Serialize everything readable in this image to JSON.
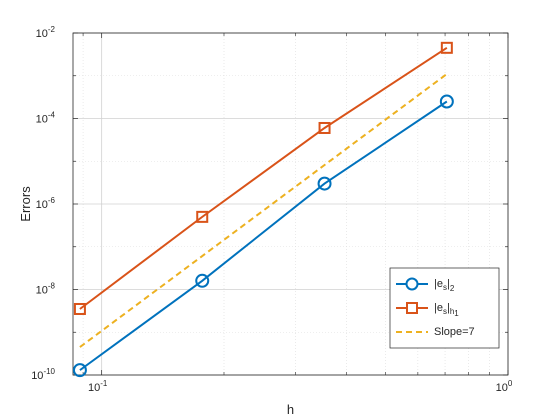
{
  "chart_data": {
    "type": "line",
    "xscale": "log",
    "yscale": "log",
    "xlim": [
      0.085,
      1.0
    ],
    "ylim": [
      1e-10,
      0.01
    ],
    "xlabel": "h",
    "ylabel": "Errors",
    "grid": true,
    "minor_grid": true,
    "legend_position": "bottom-right",
    "x_ticks": [
      {
        "value": 0.1,
        "base": "10",
        "exp": "-1"
      },
      {
        "value": 1.0,
        "base": "10",
        "exp": "0"
      }
    ],
    "y_ticks": [
      {
        "value": 1e-10,
        "base": "10",
        "exp": "-10"
      },
      {
        "value": 1e-08,
        "base": "10",
        "exp": "-8"
      },
      {
        "value": 1e-06,
        "base": "10",
        "exp": "-6"
      },
      {
        "value": 0.0001,
        "base": "10",
        "exp": "-4"
      },
      {
        "value": 0.01,
        "base": "10",
        "exp": "-2"
      }
    ],
    "series": [
      {
        "name": "|e_s|_2",
        "legend_main": "|e",
        "legend_sub1": "s",
        "legend_mid": "|",
        "legend_sub2": "2",
        "color": "#0072BD",
        "marker": "circle",
        "dash": "solid",
        "x": [
          0.0884,
          0.1768,
          0.3536,
          0.7071
        ],
        "y": [
          1.3e-10,
          1.6e-08,
          3e-06,
          0.00025
        ]
      },
      {
        "name": "|e_s|_h1",
        "legend_main": "|e",
        "legend_sub1": "s",
        "legend_mid": "|",
        "legend_sub2": "h",
        "legend_sub3": "1",
        "color": "#D95319",
        "marker": "square",
        "dash": "solid",
        "x": [
          0.0884,
          0.1768,
          0.3536,
          0.7071
        ],
        "y": [
          3.5e-09,
          5e-07,
          6e-05,
          0.0045
        ]
      },
      {
        "name": "Slope=7",
        "legend_main": "Slope=7",
        "color": "#EDB120",
        "marker": "none",
        "dash": "dashed",
        "x": [
          0.0884,
          0.7071
        ],
        "y": [
          4.5e-10,
          0.0011
        ]
      }
    ]
  }
}
